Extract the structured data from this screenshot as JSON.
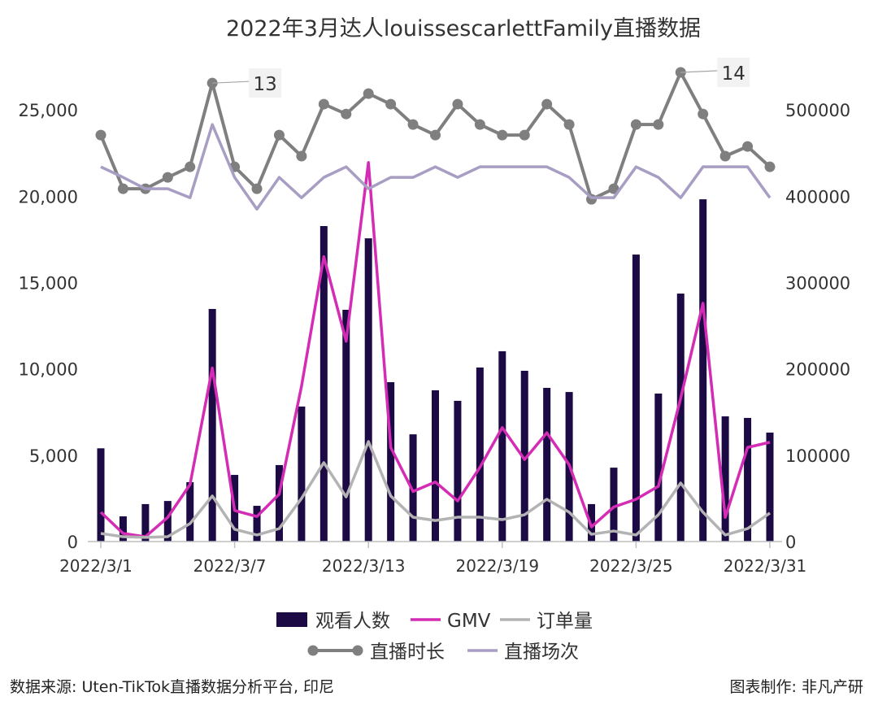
{
  "chart_data": {
    "type": "bar+line",
    "title": "2022年3月达人louissescarlettFamily直播数据",
    "categories": [
      "2022/3/1",
      "2022/3/2",
      "2022/3/3",
      "2022/3/4",
      "2022/3/5",
      "2022/3/6",
      "2022/3/7",
      "2022/3/8",
      "2022/3/9",
      "2022/3/10",
      "2022/3/11",
      "2022/3/12",
      "2022/3/13",
      "2022/3/14",
      "2022/3/15",
      "2022/3/16",
      "2022/3/17",
      "2022/3/18",
      "2022/3/19",
      "2022/3/20",
      "2022/3/21",
      "2022/3/22",
      "2022/3/23",
      "2022/3/24",
      "2022/3/25",
      "2022/3/26",
      "2022/3/27",
      "2022/3/28",
      "2022/3/29",
      "2022/3/30",
      "2022/3/31"
    ],
    "x_tick_labels": [
      "2022/3/1",
      "2022/3/7",
      "2022/3/13",
      "2022/3/19",
      "2022/3/25",
      "2022/3/31"
    ],
    "y_left": {
      "ylim": [
        0,
        27500
      ],
      "ticks": [
        "0",
        "5,000",
        "10,000",
        "15,000",
        "20,000",
        "25,000"
      ],
      "tick_values": [
        0,
        5000,
        10000,
        15000,
        20000,
        25000
      ]
    },
    "y_right": {
      "ylim": [
        0,
        550000
      ],
      "ticks": [
        "0",
        "100000",
        "200000",
        "300000",
        "400000",
        "500000"
      ],
      "tick_values": [
        0,
        100000,
        200000,
        300000,
        400000,
        500000
      ]
    },
    "grid": false,
    "legend_position": "bottom",
    "series": [
      {
        "name": "观看人数",
        "type": "bar",
        "axis": "left",
        "color": "#1c0a45",
        "values": [
          5400,
          1460,
          2170,
          2350,
          3440,
          13470,
          3860,
          2070,
          4430,
          7820,
          18270,
          13420,
          17560,
          9230,
          6210,
          8760,
          8150,
          10080,
          11020,
          9890,
          8900,
          8660,
          2170,
          4280,
          16620,
          8570,
          14360,
          19820,
          7250,
          7160,
          6310
        ]
      },
      {
        "name": "GMV",
        "type": "line",
        "axis": "right",
        "color": "#d42cb4",
        "values": [
          34000,
          9400,
          5600,
          28000,
          66000,
          201000,
          36000,
          29000,
          55000,
          180000,
          330000,
          232000,
          439000,
          109000,
          58000,
          69000,
          47000,
          86000,
          132000,
          95000,
          126000,
          89000,
          17000,
          40000,
          49000,
          64000,
          166000,
          276000,
          28000,
          109000,
          115000
        ]
      },
      {
        "name": "订单量",
        "type": "line",
        "axis": "left",
        "color": "#b3b3b3",
        "values": [
          470,
          280,
          240,
          280,
          1040,
          2640,
          710,
          380,
          750,
          2500,
          4570,
          2590,
          5790,
          2640,
          1410,
          1220,
          1410,
          1410,
          1270,
          1550,
          2450,
          1700,
          420,
          610,
          380,
          1550,
          3390,
          1700,
          380,
          750,
          1650
        ]
      },
      {
        "name": "直播时长",
        "type": "line-marker",
        "axis": "left",
        "color": "#7f7f7f",
        "values": [
          23540,
          20430,
          20430,
          21090,
          21700,
          26550,
          21700,
          20430,
          23540,
          22320,
          25330,
          24760,
          25940,
          25330,
          24150,
          23540,
          25330,
          24150,
          23540,
          23540,
          25330,
          24150,
          19820,
          20430,
          24150,
          24150,
          27170,
          24760,
          22320,
          22880,
          21700
        ]
      },
      {
        "name": "直播场次",
        "type": "line",
        "axis": "left",
        "color": "#a89dc2",
        "values": [
          21700,
          21090,
          20430,
          20430,
          19910,
          24150,
          21090,
          19250,
          21090,
          19910,
          21090,
          21700,
          20430,
          21090,
          21090,
          21700,
          21090,
          21700,
          21700,
          21700,
          21700,
          21090,
          19910,
          19910,
          21700,
          21090,
          19910,
          21700,
          21700,
          21700,
          19910
        ]
      }
    ],
    "annotations": [
      {
        "text": "13",
        "category": "2022/3/6",
        "series": "直播时长"
      },
      {
        "text": "14",
        "category": "2022/3/27",
        "series": "直播时长"
      }
    ]
  },
  "footer": {
    "source": "数据来源: Uten-TikTok直播数据分析平台, 印尼",
    "credit": "图表制作: 非凡产研"
  }
}
